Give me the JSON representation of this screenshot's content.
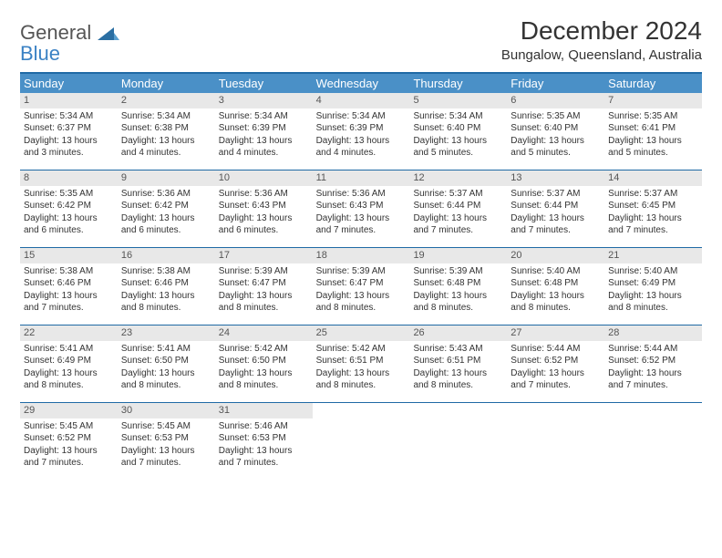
{
  "brand": {
    "line1": "General",
    "line2": "Blue"
  },
  "title": "December 2024",
  "subtitle": "Bungalow, Queensland, Australia",
  "colors": {
    "header_bg": "#4a90c7",
    "border": "#1f6aa5",
    "daynum_bg": "#e8e8e8",
    "text": "#333333",
    "logo_gray": "#555555",
    "logo_blue": "#3b82c4"
  },
  "dayNames": [
    "Sunday",
    "Monday",
    "Tuesday",
    "Wednesday",
    "Thursday",
    "Friday",
    "Saturday"
  ],
  "days": [
    {
      "n": 1,
      "sunrise": "5:34 AM",
      "sunset": "6:37 PM",
      "daylight": "13 hours and 3 minutes."
    },
    {
      "n": 2,
      "sunrise": "5:34 AM",
      "sunset": "6:38 PM",
      "daylight": "13 hours and 4 minutes."
    },
    {
      "n": 3,
      "sunrise": "5:34 AM",
      "sunset": "6:39 PM",
      "daylight": "13 hours and 4 minutes."
    },
    {
      "n": 4,
      "sunrise": "5:34 AM",
      "sunset": "6:39 PM",
      "daylight": "13 hours and 4 minutes."
    },
    {
      "n": 5,
      "sunrise": "5:34 AM",
      "sunset": "6:40 PM",
      "daylight": "13 hours and 5 minutes."
    },
    {
      "n": 6,
      "sunrise": "5:35 AM",
      "sunset": "6:40 PM",
      "daylight": "13 hours and 5 minutes."
    },
    {
      "n": 7,
      "sunrise": "5:35 AM",
      "sunset": "6:41 PM",
      "daylight": "13 hours and 5 minutes."
    },
    {
      "n": 8,
      "sunrise": "5:35 AM",
      "sunset": "6:42 PM",
      "daylight": "13 hours and 6 minutes."
    },
    {
      "n": 9,
      "sunrise": "5:36 AM",
      "sunset": "6:42 PM",
      "daylight": "13 hours and 6 minutes."
    },
    {
      "n": 10,
      "sunrise": "5:36 AM",
      "sunset": "6:43 PM",
      "daylight": "13 hours and 6 minutes."
    },
    {
      "n": 11,
      "sunrise": "5:36 AM",
      "sunset": "6:43 PM",
      "daylight": "13 hours and 7 minutes."
    },
    {
      "n": 12,
      "sunrise": "5:37 AM",
      "sunset": "6:44 PM",
      "daylight": "13 hours and 7 minutes."
    },
    {
      "n": 13,
      "sunrise": "5:37 AM",
      "sunset": "6:44 PM",
      "daylight": "13 hours and 7 minutes."
    },
    {
      "n": 14,
      "sunrise": "5:37 AM",
      "sunset": "6:45 PM",
      "daylight": "13 hours and 7 minutes."
    },
    {
      "n": 15,
      "sunrise": "5:38 AM",
      "sunset": "6:46 PM",
      "daylight": "13 hours and 7 minutes."
    },
    {
      "n": 16,
      "sunrise": "5:38 AM",
      "sunset": "6:46 PM",
      "daylight": "13 hours and 8 minutes."
    },
    {
      "n": 17,
      "sunrise": "5:39 AM",
      "sunset": "6:47 PM",
      "daylight": "13 hours and 8 minutes."
    },
    {
      "n": 18,
      "sunrise": "5:39 AM",
      "sunset": "6:47 PM",
      "daylight": "13 hours and 8 minutes."
    },
    {
      "n": 19,
      "sunrise": "5:39 AM",
      "sunset": "6:48 PM",
      "daylight": "13 hours and 8 minutes."
    },
    {
      "n": 20,
      "sunrise": "5:40 AM",
      "sunset": "6:48 PM",
      "daylight": "13 hours and 8 minutes."
    },
    {
      "n": 21,
      "sunrise": "5:40 AM",
      "sunset": "6:49 PM",
      "daylight": "13 hours and 8 minutes."
    },
    {
      "n": 22,
      "sunrise": "5:41 AM",
      "sunset": "6:49 PM",
      "daylight": "13 hours and 8 minutes."
    },
    {
      "n": 23,
      "sunrise": "5:41 AM",
      "sunset": "6:50 PM",
      "daylight": "13 hours and 8 minutes."
    },
    {
      "n": 24,
      "sunrise": "5:42 AM",
      "sunset": "6:50 PM",
      "daylight": "13 hours and 8 minutes."
    },
    {
      "n": 25,
      "sunrise": "5:42 AM",
      "sunset": "6:51 PM",
      "daylight": "13 hours and 8 minutes."
    },
    {
      "n": 26,
      "sunrise": "5:43 AM",
      "sunset": "6:51 PM",
      "daylight": "13 hours and 8 minutes."
    },
    {
      "n": 27,
      "sunrise": "5:44 AM",
      "sunset": "6:52 PM",
      "daylight": "13 hours and 7 minutes."
    },
    {
      "n": 28,
      "sunrise": "5:44 AM",
      "sunset": "6:52 PM",
      "daylight": "13 hours and 7 minutes."
    },
    {
      "n": 29,
      "sunrise": "5:45 AM",
      "sunset": "6:52 PM",
      "daylight": "13 hours and 7 minutes."
    },
    {
      "n": 30,
      "sunrise": "5:45 AM",
      "sunset": "6:53 PM",
      "daylight": "13 hours and 7 minutes."
    },
    {
      "n": 31,
      "sunrise": "5:46 AM",
      "sunset": "6:53 PM",
      "daylight": "13 hours and 7 minutes."
    }
  ],
  "labels": {
    "sunrise": "Sunrise:",
    "sunset": "Sunset:",
    "daylight": "Daylight:"
  },
  "layout": {
    "startDayIndex": 0,
    "totalCells": 35
  }
}
